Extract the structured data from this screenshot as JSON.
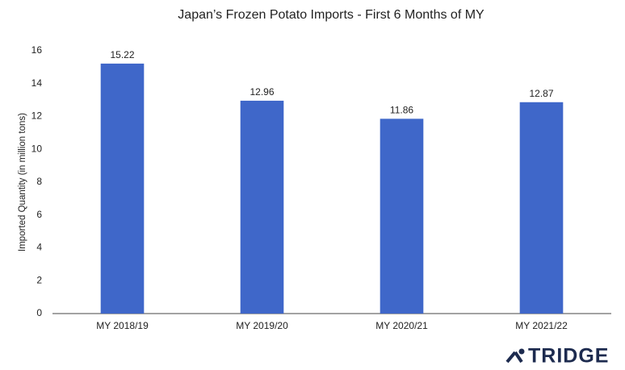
{
  "chart_data": {
    "type": "bar",
    "title": "Japan’s Frozen Potato Imports - First 6 Months of MY",
    "y_label": "Imported Quantity (in million tons)",
    "categories": [
      "MY 2018/19",
      "MY 2019/20",
      "MY 2020/21",
      "MY 2021/22"
    ],
    "values": [
      15.22,
      12.96,
      11.86,
      12.87
    ],
    "color": "#3f67c9",
    "ylim": [
      0,
      16
    ],
    "yticks": [
      0,
      2,
      4,
      6,
      8,
      10,
      12,
      14,
      16
    ],
    "grid": false
  },
  "watermark": "TRIDGE"
}
